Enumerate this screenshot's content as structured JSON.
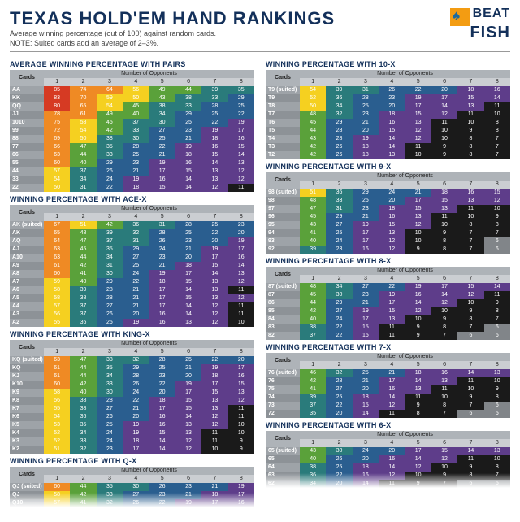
{
  "header": {
    "title": "TEXAS HOLD'EM HAND RANKINGS",
    "subtitle1": "Average winning percentage (out of 100) against random cards.",
    "subtitle2": "NOTE: Suited cards add an average of 2–3%.",
    "logo_top": "BEAT",
    "logo_bottom": "FISH"
  },
  "palette": {
    "band_colors": {
      "red": "#d63a23",
      "orange": "#ef8a24",
      "yellow": "#f5d020",
      "green": "#5aa13a",
      "teal": "#2a7b7b",
      "blue": "#2a5e8f",
      "purple": "#5e3d8a",
      "black": "#1a1a1a",
      "gray": "#818589"
    },
    "thresholds": [
      {
        "min": 80,
        "c": "red"
      },
      {
        "min": 60,
        "c": "orange"
      },
      {
        "min": 50,
        "c": "yellow"
      },
      {
        "min": 40,
        "c": "green"
      },
      {
        "min": 30,
        "c": "teal"
      },
      {
        "min": 20,
        "c": "blue"
      },
      {
        "min": 12,
        "c": "purple"
      },
      {
        "min": 7,
        "c": "black"
      },
      {
        "min": 0,
        "c": "gray"
      }
    ]
  },
  "table_common": {
    "corner_label": "Cards",
    "span_label": "Number of Opponents",
    "col_headers": [
      "1",
      "2",
      "3",
      "4",
      "5",
      "6",
      "7",
      "8"
    ]
  },
  "tables": [
    {
      "title": "AVERAGE WINNING PERCENTAGE WITH PAIRS",
      "col": "left",
      "rows": [
        {
          "c": "AA",
          "v": [
            85,
            74,
            64,
            56,
            49,
            44,
            39,
            35
          ]
        },
        {
          "c": "KK",
          "v": [
            83,
            70,
            59,
            50,
            43,
            38,
            33,
            29
          ]
        },
        {
          "c": "QQ",
          "v": [
            80,
            65,
            54,
            45,
            38,
            33,
            28,
            25
          ]
        },
        {
          "c": "JJ",
          "v": [
            78,
            61,
            49,
            40,
            34,
            29,
            25,
            22
          ]
        },
        {
          "c": "1010",
          "v": [
            75,
            58,
            45,
            37,
            30,
            25,
            22,
            19
          ]
        },
        {
          "c": "99",
          "v": [
            72,
            54,
            42,
            33,
            27,
            23,
            19,
            17
          ]
        },
        {
          "c": "88",
          "v": [
            69,
            50,
            38,
            30,
            25,
            21,
            18,
            16
          ]
        },
        {
          "c": "77",
          "v": [
            66,
            47,
            35,
            28,
            22,
            19,
            16,
            15
          ]
        },
        {
          "c": "66",
          "v": [
            63,
            44,
            33,
            25,
            21,
            18,
            15,
            14
          ]
        },
        {
          "c": "55",
          "v": [
            60,
            40,
            29,
            23,
            19,
            16,
            14,
            13
          ]
        },
        {
          "c": "44",
          "v": [
            57,
            37,
            26,
            21,
            17,
            15,
            13,
            12
          ]
        },
        {
          "c": "33",
          "v": [
            54,
            34,
            24,
            19,
            16,
            14,
            13,
            12
          ]
        },
        {
          "c": "22",
          "v": [
            50,
            31,
            22,
            18,
            15,
            14,
            12,
            11
          ]
        }
      ]
    },
    {
      "title": "WINNING PERCENTAGE WITH ACE-X",
      "col": "left",
      "rows": [
        {
          "c": "AK (suited)",
          "v": [
            67,
            51,
            42,
            36,
            31,
            28,
            25,
            23
          ]
        },
        {
          "c": "AK",
          "v": [
            65,
            48,
            39,
            32,
            28,
            25,
            22,
            20
          ]
        },
        {
          "c": "AQ",
          "v": [
            64,
            47,
            37,
            31,
            26,
            23,
            20,
            19
          ]
        },
        {
          "c": "AJ",
          "v": [
            63,
            45,
            35,
            29,
            24,
            21,
            19,
            17
          ]
        },
        {
          "c": "A10",
          "v": [
            63,
            44,
            34,
            27,
            23,
            20,
            17,
            16
          ]
        },
        {
          "c": "A9",
          "v": [
            61,
            42,
            31,
            25,
            21,
            18,
            15,
            14
          ]
        },
        {
          "c": "A8",
          "v": [
            60,
            41,
            30,
            24,
            19,
            17,
            14,
            13
          ]
        },
        {
          "c": "A7",
          "v": [
            59,
            40,
            29,
            22,
            18,
            15,
            13,
            12
          ]
        },
        {
          "c": "A6",
          "v": [
            58,
            39,
            28,
            21,
            17,
            14,
            13,
            11
          ]
        },
        {
          "c": "A5",
          "v": [
            58,
            38,
            28,
            21,
            17,
            15,
            13,
            12
          ]
        },
        {
          "c": "A4",
          "v": [
            57,
            37,
            27,
            21,
            17,
            14,
            12,
            11
          ]
        },
        {
          "c": "A3",
          "v": [
            56,
            37,
            26,
            20,
            16,
            14,
            12,
            11
          ]
        },
        {
          "c": "A2",
          "v": [
            55,
            36,
            25,
            19,
            16,
            13,
            12,
            10
          ]
        }
      ]
    },
    {
      "title": "WINNING PERCENTAGE WITH KING-X",
      "col": "left",
      "rows": [
        {
          "c": "KQ (suited)",
          "v": [
            63,
            47,
            38,
            32,
            28,
            25,
            22,
            20
          ]
        },
        {
          "c": "KQ",
          "v": [
            61,
            44,
            35,
            29,
            25,
            21,
            19,
            17
          ]
        },
        {
          "c": "KJ",
          "v": [
            61,
            44,
            34,
            28,
            23,
            20,
            18,
            16
          ]
        },
        {
          "c": "K10",
          "v": [
            60,
            42,
            33,
            26,
            22,
            19,
            17,
            15
          ]
        },
        {
          "c": "K9",
          "v": [
            58,
            40,
            30,
            24,
            20,
            17,
            15,
            13
          ]
        },
        {
          "c": "K8",
          "v": [
            56,
            38,
            28,
            22,
            18,
            15,
            13,
            12
          ]
        },
        {
          "c": "K7",
          "v": [
            55,
            38,
            27,
            21,
            17,
            15,
            13,
            11
          ]
        },
        {
          "c": "K6",
          "v": [
            54,
            36,
            26,
            20,
            16,
            14,
            12,
            11
          ]
        },
        {
          "c": "K5",
          "v": [
            53,
            35,
            25,
            19,
            16,
            13,
            12,
            10
          ]
        },
        {
          "c": "K4",
          "v": [
            52,
            34,
            24,
            19,
            15,
            13,
            11,
            10
          ]
        },
        {
          "c": "K3",
          "v": [
            52,
            33,
            24,
            18,
            14,
            12,
            11,
            9
          ]
        },
        {
          "c": "K2",
          "v": [
            51,
            32,
            23,
            17,
            14,
            12,
            10,
            9
          ]
        }
      ]
    },
    {
      "title": "WINNING PERCENTAGE WITH Q-X",
      "col": "left",
      "fade": true,
      "rows": [
        {
          "c": "QJ (suited)",
          "v": [
            60,
            44,
            35,
            30,
            26,
            23,
            21,
            19
          ]
        },
        {
          "c": "QJ",
          "v": [
            58,
            42,
            33,
            27,
            23,
            21,
            18,
            17
          ]
        },
        {
          "c": "Q10",
          "v": [
            57,
            41,
            32,
            26,
            22,
            19,
            17,
            16
          ]
        }
      ]
    },
    {
      "title": "WINNING PERCENTAGE WITH 10-X",
      "col": "right",
      "rows": [
        {
          "c": "T9 (suited)",
          "v": [
            54,
            39,
            31,
            26,
            22,
            20,
            18,
            16
          ]
        },
        {
          "c": "T9",
          "v": [
            52,
            36,
            28,
            23,
            19,
            17,
            15,
            14
          ]
        },
        {
          "c": "T8",
          "v": [
            50,
            34,
            25,
            20,
            17,
            14,
            13,
            11
          ]
        },
        {
          "c": "T7",
          "v": [
            48,
            32,
            23,
            18,
            15,
            12,
            11,
            10
          ]
        },
        {
          "c": "T6",
          "v": [
            45,
            29,
            21,
            16,
            13,
            11,
            10,
            8
          ]
        },
        {
          "c": "T5",
          "v": [
            44,
            28,
            20,
            15,
            12,
            10,
            9,
            8
          ]
        },
        {
          "c": "T4",
          "v": [
            43,
            28,
            19,
            14,
            12,
            10,
            8,
            7
          ]
        },
        {
          "c": "T3",
          "v": [
            42,
            26,
            18,
            14,
            11,
            9,
            8,
            7
          ]
        },
        {
          "c": "T2",
          "v": [
            42,
            26,
            18,
            13,
            10,
            9,
            8,
            7
          ]
        }
      ]
    },
    {
      "title": "WINNING PERCENTAGE WITH 9-X",
      "col": "right",
      "rows": [
        {
          "c": "98 (suited)",
          "v": [
            51,
            36,
            29,
            24,
            21,
            18,
            16,
            15
          ]
        },
        {
          "c": "98",
          "v": [
            48,
            33,
            25,
            20,
            17,
            15,
            13,
            12
          ]
        },
        {
          "c": "97",
          "v": [
            47,
            31,
            23,
            18,
            15,
            13,
            11,
            10
          ]
        },
        {
          "c": "96",
          "v": [
            45,
            29,
            21,
            16,
            13,
            11,
            10,
            9
          ]
        },
        {
          "c": "95",
          "v": [
            43,
            27,
            19,
            15,
            12,
            10,
            8,
            8
          ]
        },
        {
          "c": "94",
          "v": [
            41,
            25,
            17,
            13,
            10,
            9,
            7,
            7
          ]
        },
        {
          "c": "93",
          "v": [
            40,
            24,
            17,
            12,
            10,
            8,
            7,
            6
          ]
        },
        {
          "c": "92",
          "v": [
            39,
            23,
            16,
            12,
            9,
            8,
            7,
            6
          ]
        }
      ]
    },
    {
      "title": "WINNING PERCENTAGE WITH 8-X",
      "col": "right",
      "rows": [
        {
          "c": "87 (suited)",
          "v": [
            48,
            34,
            27,
            22,
            19,
            17,
            15,
            14
          ]
        },
        {
          "c": "87",
          "v": [
            45,
            30,
            23,
            19,
            16,
            14,
            12,
            11
          ]
        },
        {
          "c": "86",
          "v": [
            44,
            29,
            21,
            17,
            14,
            12,
            10,
            9
          ]
        },
        {
          "c": "85",
          "v": [
            42,
            27,
            19,
            15,
            12,
            10,
            9,
            8
          ]
        },
        {
          "c": "84",
          "v": [
            40,
            24,
            17,
            13,
            10,
            9,
            8,
            7
          ]
        },
        {
          "c": "83",
          "v": [
            38,
            22,
            15,
            11,
            9,
            8,
            7,
            6
          ]
        },
        {
          "c": "82",
          "v": [
            37,
            22,
            15,
            11,
            9,
            7,
            6,
            6
          ]
        }
      ]
    },
    {
      "title": "WINNING PERCENTAGE WITH 7-X",
      "col": "right",
      "rows": [
        {
          "c": "76 (suited)",
          "v": [
            46,
            32,
            25,
            21,
            18,
            16,
            14,
            13
          ]
        },
        {
          "c": "76",
          "v": [
            42,
            28,
            21,
            17,
            14,
            13,
            11,
            10
          ]
        },
        {
          "c": "75",
          "v": [
            41,
            27,
            20,
            16,
            13,
            11,
            10,
            9
          ]
        },
        {
          "c": "74",
          "v": [
            39,
            25,
            18,
            14,
            11,
            10,
            9,
            8
          ]
        },
        {
          "c": "73",
          "v": [
            37,
            22,
            15,
            12,
            9,
            8,
            7,
            6
          ]
        },
        {
          "c": "72",
          "v": [
            35,
            20,
            14,
            11,
            8,
            7,
            6,
            5
          ]
        }
      ]
    },
    {
      "title": "WINNING PERCENTAGE WITH 6-X",
      "col": "right",
      "fade": true,
      "rows": [
        {
          "c": "65 (suited)",
          "v": [
            43,
            30,
            24,
            20,
            17,
            15,
            14,
            13
          ]
        },
        {
          "c": "65",
          "v": [
            40,
            26,
            20,
            16,
            14,
            12,
            11,
            10
          ]
        },
        {
          "c": "64",
          "v": [
            38,
            25,
            18,
            14,
            12,
            10,
            9,
            8
          ]
        },
        {
          "c": "63",
          "v": [
            36,
            22,
            16,
            12,
            10,
            9,
            8,
            7
          ]
        },
        {
          "c": "62",
          "v": [
            34,
            20,
            14,
            11,
            9,
            7,
            6,
            6
          ]
        }
      ]
    }
  ]
}
